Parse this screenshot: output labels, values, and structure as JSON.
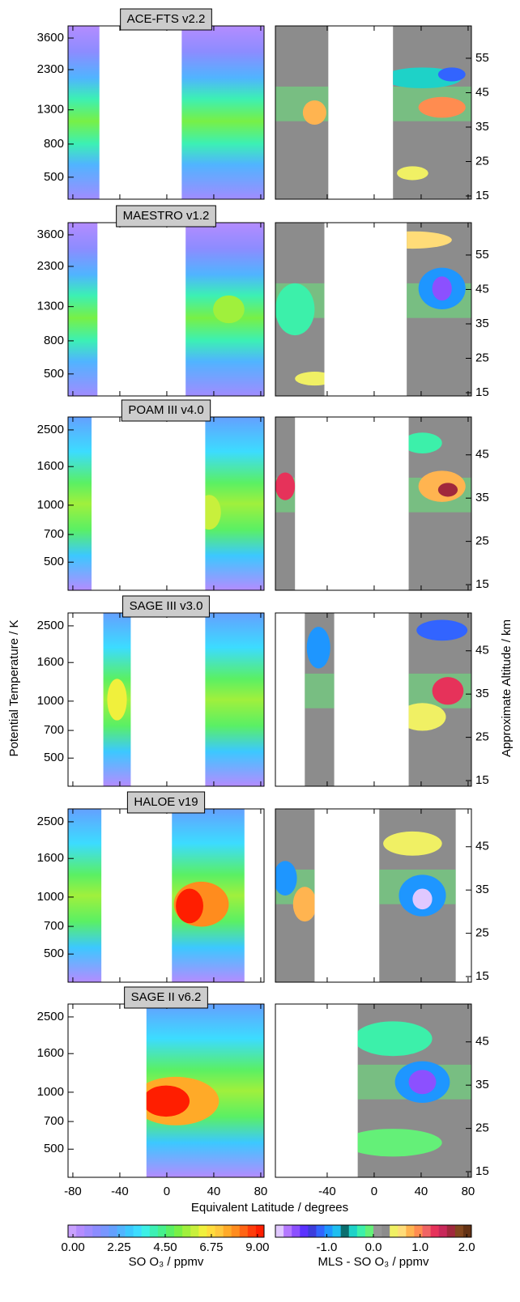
{
  "chart_data": {
    "type": "contour",
    "y_label": "Potential Temperature / K",
    "y2_label": "Approximate Altitude / km",
    "x_label": "Equivalent Latitude / degrees",
    "ylog": true,
    "xlim": [
      -84.1,
      82.8
    ],
    "xticks_left": [
      -80,
      -40,
      0,
      40,
      80
    ],
    "xticks_right": [
      -40,
      0,
      40,
      80
    ],
    "panels": [
      {
        "title": "ACE-FTS v2.2",
        "ylim": [
          366,
          4277
        ],
        "yticks": [
          500,
          800,
          1300,
          2300,
          3600
        ],
        "y2lim": [
          14.06,
          64.4
        ],
        "y2ticks": [
          15,
          25,
          35,
          45,
          55
        ]
      },
      {
        "title": "MAESTRO v1.2",
        "ylim": [
          366,
          4277
        ],
        "yticks": [
          500,
          800,
          1300,
          2300,
          3600
        ],
        "y2lim": [
          14.06,
          64.4
        ],
        "y2ticks": [
          15,
          25,
          35,
          45,
          55
        ]
      },
      {
        "title": "POAM III v4.0",
        "ylim": [
          355,
          2925
        ],
        "yticks": [
          500,
          700,
          1000,
          1600,
          2500
        ],
        "y2lim": [
          13.7,
          53.75
        ],
        "y2ticks": [
          15,
          25,
          35,
          45
        ]
      },
      {
        "title": "SAGE III v3.0",
        "ylim": [
          355,
          2925
        ],
        "yticks": [
          500,
          700,
          1000,
          1600,
          2500
        ],
        "y2lim": [
          13.7,
          53.75
        ],
        "y2ticks": [
          15,
          25,
          35,
          45
        ]
      },
      {
        "title": "HALOE v19",
        "ylim": [
          355,
          2925
        ],
        "yticks": [
          500,
          700,
          1000,
          1600,
          2500
        ],
        "y2lim": [
          13.7,
          53.75
        ],
        "y2ticks": [
          15,
          25,
          35,
          45
        ]
      },
      {
        "title": "SAGE II v6.2",
        "ylim": [
          355,
          2925
        ],
        "yticks": [
          500,
          700,
          1000,
          1600,
          2500
        ],
        "y2lim": [
          13.7,
          53.75
        ],
        "y2ticks": [
          15,
          25,
          35,
          45
        ]
      }
    ],
    "colorbars": [
      {
        "label": "SO O₃ / ppmv",
        "lim": [
          -0.24,
          9.32
        ],
        "ticks": [
          {
            "value": 0,
            "label": "0.00"
          },
          2.25,
          {
            "value": 4.5,
            "label": "4.50"
          },
          6.75,
          {
            "value": 9,
            "label": "9.00"
          }
        ],
        "colors": [
          "#c8a0ff",
          "#b48cff",
          "#a08cff",
          "#8c8cff",
          "#7896ff",
          "#64a0ff",
          "#50b4ff",
          "#3cc8ff",
          "#3cdcff",
          "#3cf0e6",
          "#3cf0b4",
          "#46f08c",
          "#5af064",
          "#78f046",
          "#a0f03c",
          "#c8f03c",
          "#f0f03c",
          "#ffdc3c",
          "#ffc83c",
          "#ffaa28",
          "#ff8c1e",
          "#ff6414",
          "#ff3c0a",
          "#ff1e00"
        ]
      },
      {
        "label": "MLS - SO O₃ / ppmv",
        "lim": [
          -2.1,
          2.1
        ],
        "ticks": [
          {
            "value": -1,
            "label": "-1.0"
          },
          {
            "value": 0,
            "label": "0.0"
          },
          {
            "value": 1,
            "label": "1.0"
          },
          {
            "value": 2,
            "label": "2.0"
          }
        ],
        "colors": [
          "#e0c8ff",
          "#b478ff",
          "#8c50ff",
          "#5a32ff",
          "#3c3cdc",
          "#3264ff",
          "#1e96ff",
          "#1ebef0",
          "#0a6e6e",
          "#1ed2c8",
          "#3cf0aa",
          "#64f078",
          "#969696",
          "#8c8c8c",
          "#f0f064",
          "#ffdc78",
          "#ffb450",
          "#ff8c50",
          "#f06464",
          "#e6325a",
          "#c8285a",
          "#a0283c",
          "#82461e",
          "#643214"
        ]
      }
    ]
  }
}
